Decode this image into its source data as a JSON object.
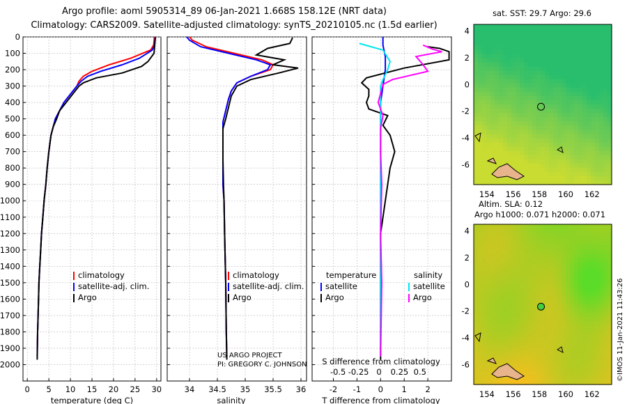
{
  "title_line1": "Argo profile: aoml 5905314_89 06-Jan-2021 1.668S 158.12E (NRT data)",
  "title_line2": "Climatology: CARS2009. Satellite-adjusted climatology: synTS_20210105.nc (1.5d earlier)",
  "colors": {
    "climatology": "#ff0000",
    "satellite": "#0000ff",
    "argo": "#000000",
    "sat_sal": "#00e5ee",
    "argo_sal": "#ff00ff"
  },
  "chart_data": [
    {
      "type": "line",
      "panel": "temperature",
      "xlabel": "temperature (deg C)",
      "ylabel": "pressure",
      "xlim": [
        -1,
        31
      ],
      "ylim": [
        0,
        2100
      ],
      "invert_y": true,
      "xticks": [
        "0",
        "5",
        "10",
        "15",
        "20",
        "25",
        "30"
      ],
      "yticks": [
        "0",
        "100",
        "200",
        "300",
        "400",
        "500",
        "600",
        "700",
        "800",
        "900",
        "1000",
        "1100",
        "1200",
        "1300",
        "1400",
        "1500",
        "1600",
        "1700",
        "1800",
        "1900",
        "2000"
      ],
      "legend": [
        "climatology",
        "satellite-adj. clim.",
        "Argo"
      ],
      "series": [
        {
          "name": "climatology",
          "color": "#ff0000",
          "x": [
            29.5,
            29.3,
            28.6,
            24,
            19,
            15,
            13,
            12,
            11.5,
            10,
            8.5,
            7.5,
            6.5,
            6,
            5.5,
            5,
            4.6,
            4.3,
            3.9,
            3.6,
            3.3,
            3.1,
            2.9,
            2.7,
            2.6,
            2.5,
            2.4,
            2.3
          ],
          "y": [
            0,
            50,
            80,
            130,
            170,
            210,
            240,
            270,
            300,
            350,
            400,
            450,
            500,
            550,
            600,
            700,
            800,
            900,
            1000,
            1100,
            1200,
            1300,
            1400,
            1500,
            1600,
            1700,
            1800,
            1950
          ]
        },
        {
          "name": "satellite-adj. clim.",
          "color": "#0000ff",
          "x": [
            29.7,
            29.5,
            29,
            26,
            22,
            17,
            14,
            12.5,
            11.5,
            10,
            8.5,
            7.5,
            6.5,
            6,
            5.5,
            5,
            4.6,
            4.3,
            3.9,
            3.6,
            3.3,
            3.1,
            2.9,
            2.7,
            2.6,
            2.5,
            2.4,
            2.3
          ],
          "y": [
            0,
            50,
            80,
            130,
            170,
            210,
            240,
            270,
            300,
            350,
            400,
            450,
            500,
            550,
            600,
            700,
            800,
            900,
            1000,
            1100,
            1200,
            1300,
            1400,
            1500,
            1600,
            1700,
            1800,
            1950
          ]
        },
        {
          "name": "Argo",
          "color": "#000000",
          "x": [
            29.7,
            29.6,
            29.4,
            28,
            26.5,
            22,
            16,
            13,
            12,
            10.5,
            9,
            7.5,
            6.8,
            6,
            5.5,
            5,
            4.6,
            4.3,
            3.9,
            3.6,
            3.3,
            3.1,
            2.9,
            2.7,
            2.6,
            2.5,
            2.4,
            2.3
          ],
          "y": [
            5,
            40,
            100,
            150,
            180,
            220,
            250,
            280,
            300,
            350,
            400,
            450,
            500,
            550,
            600,
            700,
            800,
            900,
            1000,
            1100,
            1200,
            1300,
            1400,
            1500,
            1600,
            1700,
            1800,
            1970
          ]
        }
      ]
    },
    {
      "type": "line",
      "panel": "salinity",
      "xlabel": "salinity",
      "ylabel": "pressure",
      "xlim": [
        33.6,
        36.1
      ],
      "ylim": [
        0,
        2100
      ],
      "invert_y": true,
      "xticks": [
        "34",
        "34.5",
        "35",
        "35.5",
        "36"
      ],
      "legend": [
        "climatology",
        "satellite-adj. clim.",
        "Argo"
      ],
      "annotation_lines": [
        "US ARGO PROJECT",
        "PI: GREGORY C. JOHNSON"
      ],
      "series": [
        {
          "name": "climatology",
          "color": "#ff0000",
          "x": [
            34.0,
            34.05,
            34.3,
            34.8,
            35.3,
            35.5,
            35.45,
            35.1,
            34.85,
            34.75,
            34.7,
            34.65,
            34.6,
            34.6,
            34.6,
            34.6,
            34.6,
            34.62,
            34.63,
            34.65,
            34.66,
            34.67
          ],
          "y": [
            0,
            20,
            60,
            100,
            140,
            170,
            200,
            240,
            280,
            330,
            380,
            450,
            520,
            600,
            700,
            800,
            900,
            1000,
            1200,
            1500,
            1800,
            1950
          ]
        },
        {
          "name": "satellite-adj. clim.",
          "color": "#0000ff",
          "x": [
            33.95,
            34.0,
            34.2,
            34.7,
            35.2,
            35.45,
            35.4,
            35.1,
            34.85,
            34.75,
            34.7,
            34.65,
            34.6,
            34.6,
            34.6,
            34.6,
            34.6,
            34.62,
            34.63,
            34.65,
            34.66,
            34.67
          ],
          "y": [
            0,
            20,
            60,
            100,
            140,
            170,
            200,
            240,
            280,
            330,
            380,
            450,
            520,
            600,
            700,
            800,
            900,
            1000,
            1200,
            1500,
            1800,
            1950
          ]
        },
        {
          "name": "Argo",
          "color": "#000000",
          "x": [
            35.85,
            35.8,
            35.4,
            35.2,
            35.7,
            35.5,
            35.95,
            35.6,
            35.1,
            34.85,
            34.75,
            34.7,
            34.65,
            34.6,
            34.6,
            34.6,
            34.61,
            34.62,
            34.63,
            34.65,
            34.66,
            34.67
          ],
          "y": [
            5,
            40,
            70,
            110,
            140,
            170,
            190,
            220,
            260,
            300,
            360,
            430,
            500,
            560,
            650,
            750,
            900,
            1000,
            1200,
            1500,
            1800,
            1970
          ]
        }
      ]
    },
    {
      "type": "line",
      "panel": "difference",
      "xlabel": "T difference from climatology",
      "xlabel_top": "S difference from climatology",
      "xlim": [
        -2.9,
        3.0
      ],
      "ylim": [
        0,
        2100
      ],
      "invert_y": true,
      "xticks": [
        "-2",
        "-1",
        "0",
        "1",
        "2"
      ],
      "xticks_salinity": [
        "-0.5",
        "-0.25",
        "0",
        "0.25",
        "0.5"
      ],
      "legend_headers": [
        "temperature",
        "salinity"
      ],
      "legend": [
        "satellite",
        "Argo",
        "satellite",
        "Argo"
      ],
      "series": [
        {
          "name": "T satellite",
          "color": "#0000ff",
          "x": [
            0.1,
            0.1,
            0.2,
            0.2,
            0.1,
            0.0,
            0.0,
            0.0,
            0.0,
            0.0,
            0.0,
            0.0,
            0.0,
            0.0
          ],
          "y": [
            0,
            50,
            120,
            200,
            300,
            400,
            500,
            700,
            900,
            1100,
            1300,
            1500,
            1700,
            1950
          ]
        },
        {
          "name": "T Argo",
          "color": "#000000",
          "x": [
            2.0,
            2.5,
            2.9,
            2.9,
            1.0,
            -0.6,
            -0.8,
            -0.5,
            -0.5,
            -0.6,
            -0.5,
            0.3,
            0.1,
            0.4,
            0.5,
            0.6,
            0.5,
            0.4,
            0.3,
            0.2,
            0.1,
            0.0,
            0.0,
            0.0,
            0.0,
            0.0
          ],
          "y": [
            60,
            70,
            90,
            140,
            190,
            250,
            280,
            320,
            360,
            400,
            440,
            480,
            540,
            600,
            650,
            700,
            750,
            800,
            900,
            1000,
            1100,
            1200,
            1400,
            1600,
            1800,
            1970
          ]
        },
        {
          "name": "S satellite",
          "color": "#00e5ee",
          "x": [
            -0.9,
            -0.4,
            0.1,
            0.4,
            0.3,
            0.1,
            0.0,
            0.0,
            0.0,
            0.0,
            0.0,
            0.0
          ],
          "y": [
            40,
            60,
            80,
            150,
            200,
            260,
            300,
            400,
            600,
            900,
            1300,
            1950
          ]
        },
        {
          "name": "S Argo",
          "color": "#ff00ff",
          "x": [
            1.8,
            2.2,
            2.6,
            1.5,
            1.8,
            2.0,
            0.5,
            0.1,
            -0.1,
            0.1,
            0.0,
            0.0,
            0.05,
            0.0,
            0.05,
            0.0
          ],
          "y": [
            50,
            75,
            90,
            120,
            170,
            210,
            260,
            290,
            400,
            480,
            560,
            700,
            900,
            1200,
            1500,
            1950
          ]
        }
      ]
    }
  ],
  "maps": {
    "top_title": "sat. SST: 29.7 Argo: 29.6",
    "bottom_title_line1": "Altim. SLA: 0.12",
    "bottom_title_line2": "Argo h1000: 0.071 h2000: 0.071",
    "xticks": [
      "154",
      "156",
      "158",
      "160",
      "162"
    ],
    "yticks": [
      "4",
      "2",
      "0",
      "-2",
      "-4",
      "-6"
    ],
    "float_lon": 158.12,
    "float_lat": -1.668,
    "credit": "©IMOS 11-Jan-2021 11:43:26"
  }
}
